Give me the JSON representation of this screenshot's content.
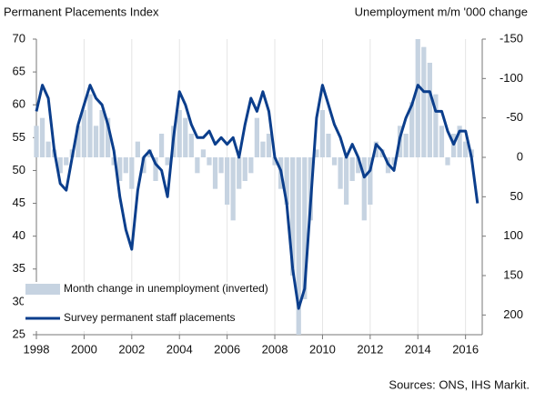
{
  "chart_data": {
    "type": "bar_line_dual",
    "title": "Permanent Placements Index",
    "y2_label": "Unemployment  m/m '000 change",
    "source": "Sources: ONS,  IHS Markit.",
    "x": [
      1998,
      1998.25,
      1998.5,
      1998.75,
      1999,
      1999.25,
      1999.5,
      1999.75,
      2000,
      2000.25,
      2000.5,
      2000.75,
      2001,
      2001.25,
      2001.5,
      2001.75,
      2002,
      2002.25,
      2002.5,
      2002.75,
      2003,
      2003.25,
      2003.5,
      2003.75,
      2004,
      2004.25,
      2004.5,
      2004.75,
      2005,
      2005.25,
      2005.5,
      2005.75,
      2006,
      2006.25,
      2006.5,
      2006.75,
      2007,
      2007.25,
      2007.5,
      2007.75,
      2008,
      2008.25,
      2008.5,
      2008.75,
      2009,
      2009.25,
      2009.5,
      2009.75,
      2010,
      2010.25,
      2010.5,
      2010.75,
      2011,
      2011.25,
      2011.5,
      2011.75,
      2012,
      2012.25,
      2012.5,
      2012.75,
      2013,
      2013.25,
      2013.5,
      2013.75,
      2014,
      2014.25,
      2014.5,
      2014.75,
      2015,
      2015.25,
      2015.5,
      2015.75,
      2016,
      2016.25,
      2016.5
    ],
    "series": [
      {
        "name": "Month change in unemployment (inverted)",
        "color": "#c6d3e1",
        "axis": "y2",
        "values": [
          -40,
          -50,
          -20,
          -10,
          20,
          10,
          -10,
          -40,
          -60,
          -80,
          -40,
          -60,
          -50,
          10,
          30,
          20,
          40,
          -20,
          20,
          -10,
          30,
          -30,
          10,
          -40,
          -60,
          -50,
          -30,
          20,
          -10,
          10,
          40,
          20,
          60,
          80,
          40,
          30,
          20,
          -50,
          -20,
          -30,
          10,
          40,
          60,
          150,
          225,
          180,
          80,
          -10,
          -60,
          -30,
          10,
          40,
          60,
          30,
          20,
          80,
          60,
          -20,
          -10,
          20,
          10,
          -40,
          -30,
          -70,
          -150,
          -140,
          -120,
          -80,
          -40,
          10,
          -30,
          -40,
          -20,
          -10,
          0
        ]
      },
      {
        "name": "Survey permanent staff placements",
        "color": "#0b3e8c",
        "axis": "y",
        "values": [
          59,
          63,
          61,
          53,
          48,
          47,
          52,
          57,
          60,
          63,
          61,
          60,
          57,
          53,
          46,
          41,
          38,
          47,
          52,
          53,
          51,
          50,
          46,
          55,
          62,
          60,
          57,
          55,
          55,
          56,
          54,
          55,
          54,
          55,
          52,
          57,
          61,
          59,
          62,
          59,
          52,
          50,
          45,
          35,
          29,
          32,
          45,
          58,
          63,
          60,
          57,
          55,
          52,
          54,
          52,
          49,
          50,
          54,
          53,
          51,
          50,
          55,
          58,
          60,
          63,
          62,
          62,
          59,
          59,
          56,
          54,
          56,
          56,
          52,
          45
        ]
      }
    ],
    "xlim": [
      1998,
      2016.7
    ],
    "xticks": [
      1998,
      2000,
      2002,
      2004,
      2006,
      2008,
      2010,
      2012,
      2014,
      2016
    ],
    "ylim": [
      25,
      70
    ],
    "yticks": [
      25,
      30,
      35,
      40,
      45,
      50,
      55,
      60,
      65,
      70
    ],
    "y2lim": [
      225,
      -150
    ],
    "y2ticks": [
      -150,
      -100,
      -50,
      0,
      50,
      100,
      150,
      200
    ],
    "grid": true,
    "legend": "lower left"
  }
}
